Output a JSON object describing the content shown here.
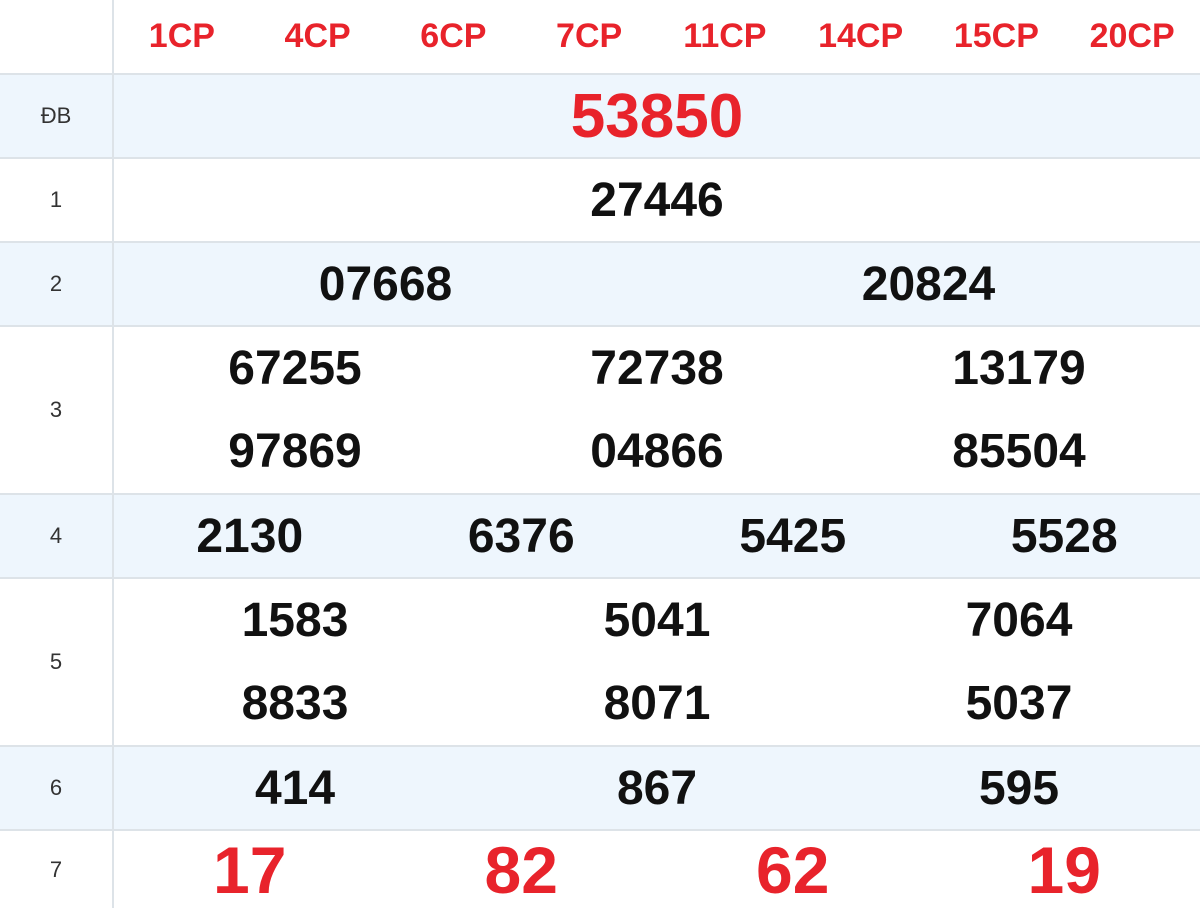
{
  "header": {
    "codes": [
      "1CP",
      "4CP",
      "6CP",
      "7CP",
      "11CP",
      "14CP",
      "15CP",
      "20CP"
    ]
  },
  "prizes": [
    {
      "label": "ĐB",
      "rows": [
        [
          "53850"
        ]
      ]
    },
    {
      "label": "1",
      "rows": [
        [
          "27446"
        ]
      ]
    },
    {
      "label": "2",
      "rows": [
        [
          "07668",
          "20824"
        ]
      ]
    },
    {
      "label": "3",
      "rows": [
        [
          "67255",
          "72738",
          "13179"
        ],
        [
          "97869",
          "04866",
          "85504"
        ]
      ]
    },
    {
      "label": "4",
      "rows": [
        [
          "2130",
          "6376",
          "5425",
          "5528"
        ]
      ]
    },
    {
      "label": "5",
      "rows": [
        [
          "1583",
          "5041",
          "7064"
        ],
        [
          "8833",
          "8071",
          "5037"
        ]
      ]
    },
    {
      "label": "6",
      "rows": [
        [
          "414",
          "867",
          "595"
        ]
      ]
    },
    {
      "label": "7",
      "rows": [
        [
          "17",
          "82",
          "62",
          "19"
        ]
      ]
    }
  ],
  "colors": {
    "accent": "#e8232b",
    "row_alt": "#eef6fd",
    "border": "#dde3e8"
  }
}
